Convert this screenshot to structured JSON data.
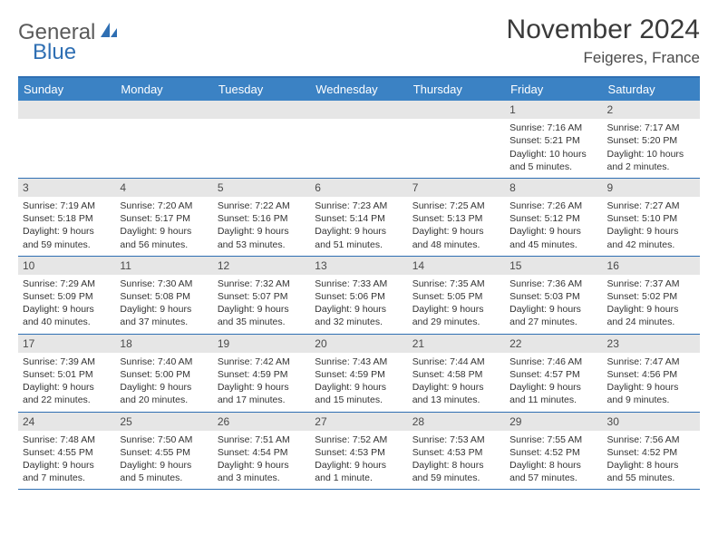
{
  "logo": {
    "text1": "General",
    "text2": "Blue"
  },
  "title": "November 2024",
  "location": "Feigeres, France",
  "colors": {
    "header_bg": "#3b82c4",
    "border": "#2f6fb3",
    "daynum_bg": "#e6e6e6",
    "text": "#333333"
  },
  "day_names": [
    "Sunday",
    "Monday",
    "Tuesday",
    "Wednesday",
    "Thursday",
    "Friday",
    "Saturday"
  ],
  "weeks": [
    [
      null,
      null,
      null,
      null,
      null,
      {
        "n": "1",
        "sunrise": "7:16 AM",
        "sunset": "5:21 PM",
        "daylight": "10 hours and 5 minutes."
      },
      {
        "n": "2",
        "sunrise": "7:17 AM",
        "sunset": "5:20 PM",
        "daylight": "10 hours and 2 minutes."
      }
    ],
    [
      {
        "n": "3",
        "sunrise": "7:19 AM",
        "sunset": "5:18 PM",
        "daylight": "9 hours and 59 minutes."
      },
      {
        "n": "4",
        "sunrise": "7:20 AM",
        "sunset": "5:17 PM",
        "daylight": "9 hours and 56 minutes."
      },
      {
        "n": "5",
        "sunrise": "7:22 AM",
        "sunset": "5:16 PM",
        "daylight": "9 hours and 53 minutes."
      },
      {
        "n": "6",
        "sunrise": "7:23 AM",
        "sunset": "5:14 PM",
        "daylight": "9 hours and 51 minutes."
      },
      {
        "n": "7",
        "sunrise": "7:25 AM",
        "sunset": "5:13 PM",
        "daylight": "9 hours and 48 minutes."
      },
      {
        "n": "8",
        "sunrise": "7:26 AM",
        "sunset": "5:12 PM",
        "daylight": "9 hours and 45 minutes."
      },
      {
        "n": "9",
        "sunrise": "7:27 AM",
        "sunset": "5:10 PM",
        "daylight": "9 hours and 42 minutes."
      }
    ],
    [
      {
        "n": "10",
        "sunrise": "7:29 AM",
        "sunset": "5:09 PM",
        "daylight": "9 hours and 40 minutes."
      },
      {
        "n": "11",
        "sunrise": "7:30 AM",
        "sunset": "5:08 PM",
        "daylight": "9 hours and 37 minutes."
      },
      {
        "n": "12",
        "sunrise": "7:32 AM",
        "sunset": "5:07 PM",
        "daylight": "9 hours and 35 minutes."
      },
      {
        "n": "13",
        "sunrise": "7:33 AM",
        "sunset": "5:06 PM",
        "daylight": "9 hours and 32 minutes."
      },
      {
        "n": "14",
        "sunrise": "7:35 AM",
        "sunset": "5:05 PM",
        "daylight": "9 hours and 29 minutes."
      },
      {
        "n": "15",
        "sunrise": "7:36 AM",
        "sunset": "5:03 PM",
        "daylight": "9 hours and 27 minutes."
      },
      {
        "n": "16",
        "sunrise": "7:37 AM",
        "sunset": "5:02 PM",
        "daylight": "9 hours and 24 minutes."
      }
    ],
    [
      {
        "n": "17",
        "sunrise": "7:39 AM",
        "sunset": "5:01 PM",
        "daylight": "9 hours and 22 minutes."
      },
      {
        "n": "18",
        "sunrise": "7:40 AM",
        "sunset": "5:00 PM",
        "daylight": "9 hours and 20 minutes."
      },
      {
        "n": "19",
        "sunrise": "7:42 AM",
        "sunset": "4:59 PM",
        "daylight": "9 hours and 17 minutes."
      },
      {
        "n": "20",
        "sunrise": "7:43 AM",
        "sunset": "4:59 PM",
        "daylight": "9 hours and 15 minutes."
      },
      {
        "n": "21",
        "sunrise": "7:44 AM",
        "sunset": "4:58 PM",
        "daylight": "9 hours and 13 minutes."
      },
      {
        "n": "22",
        "sunrise": "7:46 AM",
        "sunset": "4:57 PM",
        "daylight": "9 hours and 11 minutes."
      },
      {
        "n": "23",
        "sunrise": "7:47 AM",
        "sunset": "4:56 PM",
        "daylight": "9 hours and 9 minutes."
      }
    ],
    [
      {
        "n": "24",
        "sunrise": "7:48 AM",
        "sunset": "4:55 PM",
        "daylight": "9 hours and 7 minutes."
      },
      {
        "n": "25",
        "sunrise": "7:50 AM",
        "sunset": "4:55 PM",
        "daylight": "9 hours and 5 minutes."
      },
      {
        "n": "26",
        "sunrise": "7:51 AM",
        "sunset": "4:54 PM",
        "daylight": "9 hours and 3 minutes."
      },
      {
        "n": "27",
        "sunrise": "7:52 AM",
        "sunset": "4:53 PM",
        "daylight": "9 hours and 1 minute."
      },
      {
        "n": "28",
        "sunrise": "7:53 AM",
        "sunset": "4:53 PM",
        "daylight": "8 hours and 59 minutes."
      },
      {
        "n": "29",
        "sunrise": "7:55 AM",
        "sunset": "4:52 PM",
        "daylight": "8 hours and 57 minutes."
      },
      {
        "n": "30",
        "sunrise": "7:56 AM",
        "sunset": "4:52 PM",
        "daylight": "8 hours and 55 minutes."
      }
    ]
  ],
  "labels": {
    "sunrise": "Sunrise:",
    "sunset": "Sunset:",
    "daylight": "Daylight:"
  }
}
